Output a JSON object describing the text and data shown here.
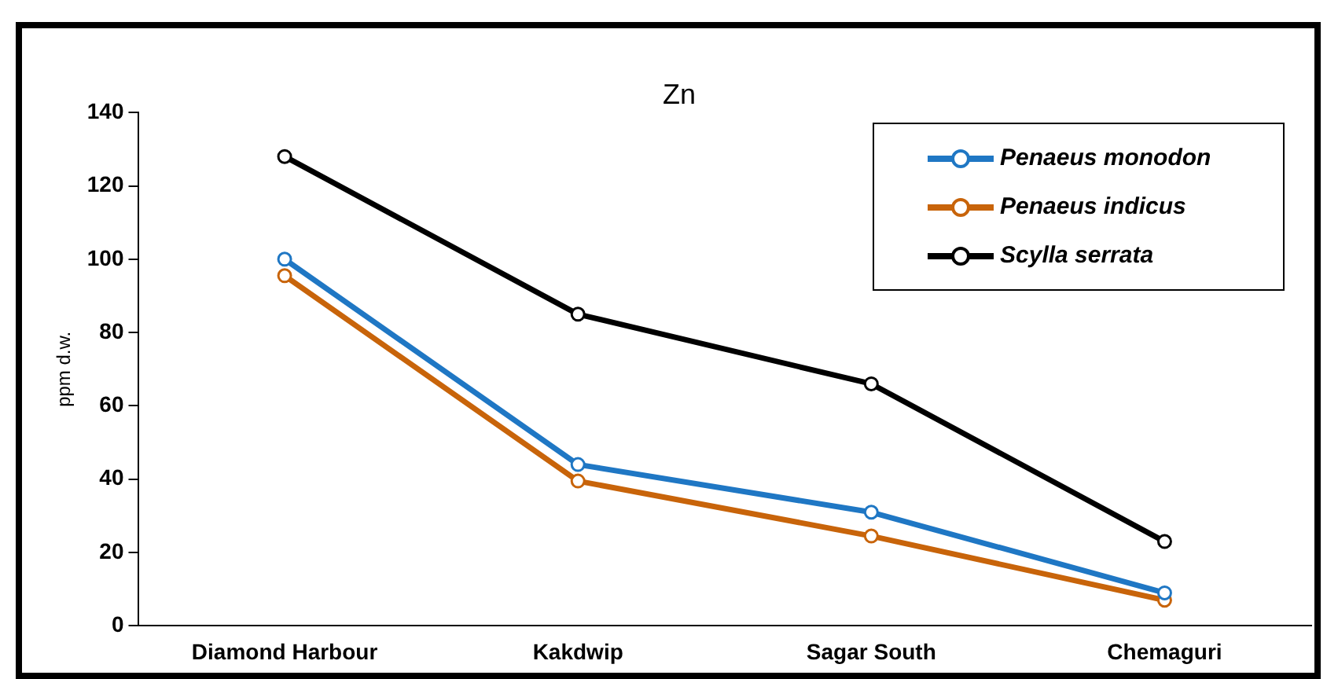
{
  "chart_data": {
    "type": "line",
    "title": "Zn",
    "ylabel": "ppm d.w.",
    "categories": [
      "Diamond Harbour",
      "Kakdwip",
      "Sagar South",
      "Chemaguri"
    ],
    "series": [
      {
        "name": "Penaeus monodon",
        "color": "#1f77c4",
        "values": [
          100,
          44,
          31,
          9
        ]
      },
      {
        "name": "Penaeus indicus",
        "color": "#c8640a",
        "values": [
          95.5,
          39.5,
          24.5,
          7
        ]
      },
      {
        "name": "Scylla serrata",
        "color": "#000000",
        "values": [
          128,
          85,
          66,
          23
        ]
      }
    ],
    "ylim": [
      0,
      140
    ],
    "yticks": [
      0,
      20,
      40,
      60,
      80,
      100,
      120,
      140
    ],
    "grid": false,
    "legend": "top right",
    "marker": "circle",
    "line_style": "solid"
  }
}
